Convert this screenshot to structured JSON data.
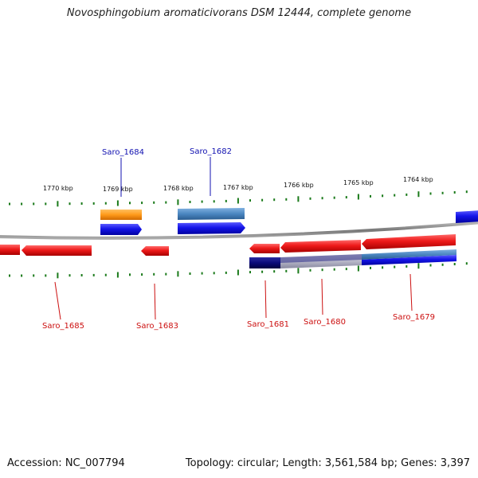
{
  "title": "Novosphingobium aromaticivorans DSM 12444, complete genome",
  "footer": {
    "accession": "Accession: NC_007794",
    "stats": "Topology: circular; Length: 3,561,584 bp; Genes: 3,397"
  },
  "colors": {
    "forward_gene": "#1010e0",
    "reverse_gene": "#e8141e",
    "orange_feature": "#ff9a1a",
    "steelblue_feature": "#4b86c0",
    "navy_feature": "#0a0a78",
    "backbone": "#888888",
    "tick": "#1a7a1a",
    "label_top": "#1010b0",
    "label_bottom": "#cc1010"
  },
  "kbp_labels": [
    "1770 kbp",
    "1769 kbp",
    "1768 kbp",
    "1767 kbp",
    "1766 kbp",
    "1765 kbp",
    "1764 kbp"
  ],
  "gene_labels_top": [
    "Saro_1684",
    "Saro_1682"
  ],
  "gene_labels_bottom": [
    "Saro_1685",
    "Saro_1683",
    "Saro_1681",
    "Saro_1680",
    "Saro_1679"
  ]
}
